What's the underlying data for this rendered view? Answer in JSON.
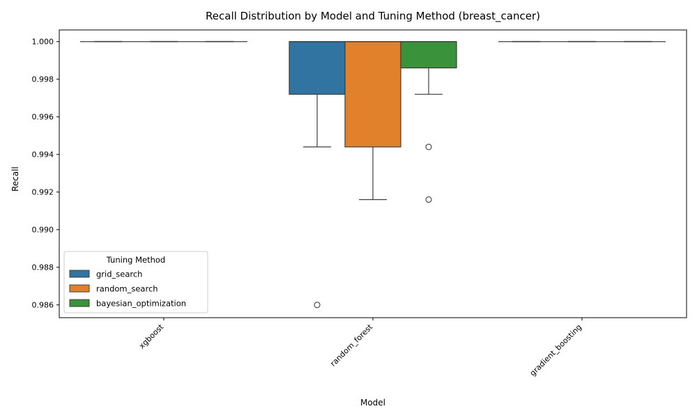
{
  "chart_data": {
    "type": "box",
    "title": "Recall Distribution by Model and Tuning Method (breast_cancer)",
    "xlabel": "Model",
    "ylabel": "Recall",
    "ylim": [
      0.98532,
      1.00062
    ],
    "yticks": [
      0.986,
      0.988,
      0.99,
      0.992,
      0.994,
      0.996,
      0.998,
      1.0
    ],
    "ytick_labels": [
      "0.986",
      "0.988",
      "0.990",
      "0.992",
      "0.994",
      "0.996",
      "0.998",
      "1.000"
    ],
    "categories": [
      "xgboost",
      "random_forest",
      "gradient_boosting"
    ],
    "legend": {
      "title": "Tuning Method",
      "position": "lower-left"
    },
    "series": [
      {
        "name": "grid_search",
        "color": "#3274a1",
        "boxes": [
          {
            "whisker_low": 1.0,
            "q1": 1.0,
            "median": 1.0,
            "q3": 1.0,
            "whisker_high": 1.0,
            "outliers": []
          },
          {
            "whisker_low": 0.9944,
            "q1": 0.9972,
            "median": 1.0,
            "q3": 1.0,
            "whisker_high": 1.0,
            "outliers": [
              0.986
            ]
          },
          {
            "whisker_low": 1.0,
            "q1": 1.0,
            "median": 1.0,
            "q3": 1.0,
            "whisker_high": 1.0,
            "outliers": []
          }
        ]
      },
      {
        "name": "random_search",
        "color": "#e1812c",
        "boxes": [
          {
            "whisker_low": 1.0,
            "q1": 1.0,
            "median": 1.0,
            "q3": 1.0,
            "whisker_high": 1.0,
            "outliers": []
          },
          {
            "whisker_low": 0.9916,
            "q1": 0.9944,
            "median": 1.0,
            "q3": 1.0,
            "whisker_high": 1.0,
            "outliers": []
          },
          {
            "whisker_low": 1.0,
            "q1": 1.0,
            "median": 1.0,
            "q3": 1.0,
            "whisker_high": 1.0,
            "outliers": []
          }
        ]
      },
      {
        "name": "bayesian_optimization",
        "color": "#3a923a",
        "boxes": [
          {
            "whisker_low": 1.0,
            "q1": 1.0,
            "median": 1.0,
            "q3": 1.0,
            "whisker_high": 1.0,
            "outliers": []
          },
          {
            "whisker_low": 0.9972,
            "q1": 0.9986,
            "median": 1.0,
            "q3": 1.0,
            "whisker_high": 1.0,
            "outliers": [
              0.9944,
              0.9916
            ]
          },
          {
            "whisker_low": 1.0,
            "q1": 1.0,
            "median": 1.0,
            "q3": 1.0,
            "whisker_high": 1.0,
            "outliers": []
          }
        ]
      }
    ]
  }
}
